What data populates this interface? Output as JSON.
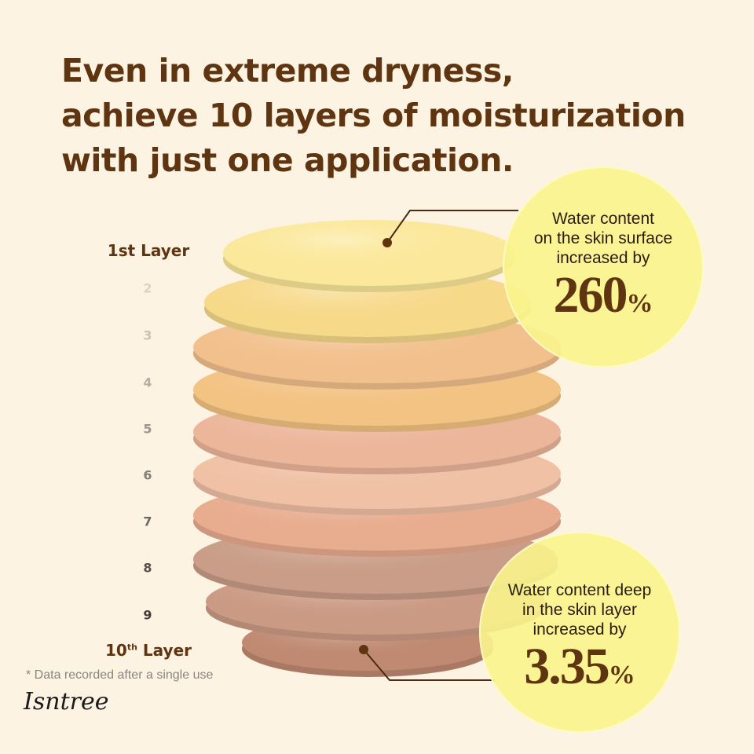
{
  "headline": [
    "Even in extreme dryness,",
    "achieve 10 layers of moisturization",
    "with just one application."
  ],
  "layers": {
    "first": {
      "text": "1st Layer"
    },
    "middle": [
      "2",
      "3",
      "4",
      "5",
      "6",
      "7",
      "8",
      "9"
    ],
    "last": {
      "num": "10",
      "sup": "th",
      "word": " Layer"
    }
  },
  "layer_colors": [
    "#fbe89a",
    "#f7d98a",
    "#f2c08c",
    "#f3c383",
    "#ecb69b",
    "#f0c1a5",
    "#e8ac8e",
    "#c99d87",
    "#cb9a84",
    "#c08a72"
  ],
  "callouts": [
    {
      "text": [
        "Water content",
        "on the skin surface",
        "increased by"
      ],
      "value": "260",
      "unit": "%"
    },
    {
      "text": [
        "Water content deep",
        "in the skin layer",
        "increased by"
      ],
      "value": "3.35",
      "unit": "%"
    }
  ],
  "note": "* Data recorded after a single use",
  "brand": "Isntree",
  "colors": {
    "background": "#fdf3e3",
    "accent": "#5e3510",
    "bubble": "#faf48c"
  }
}
